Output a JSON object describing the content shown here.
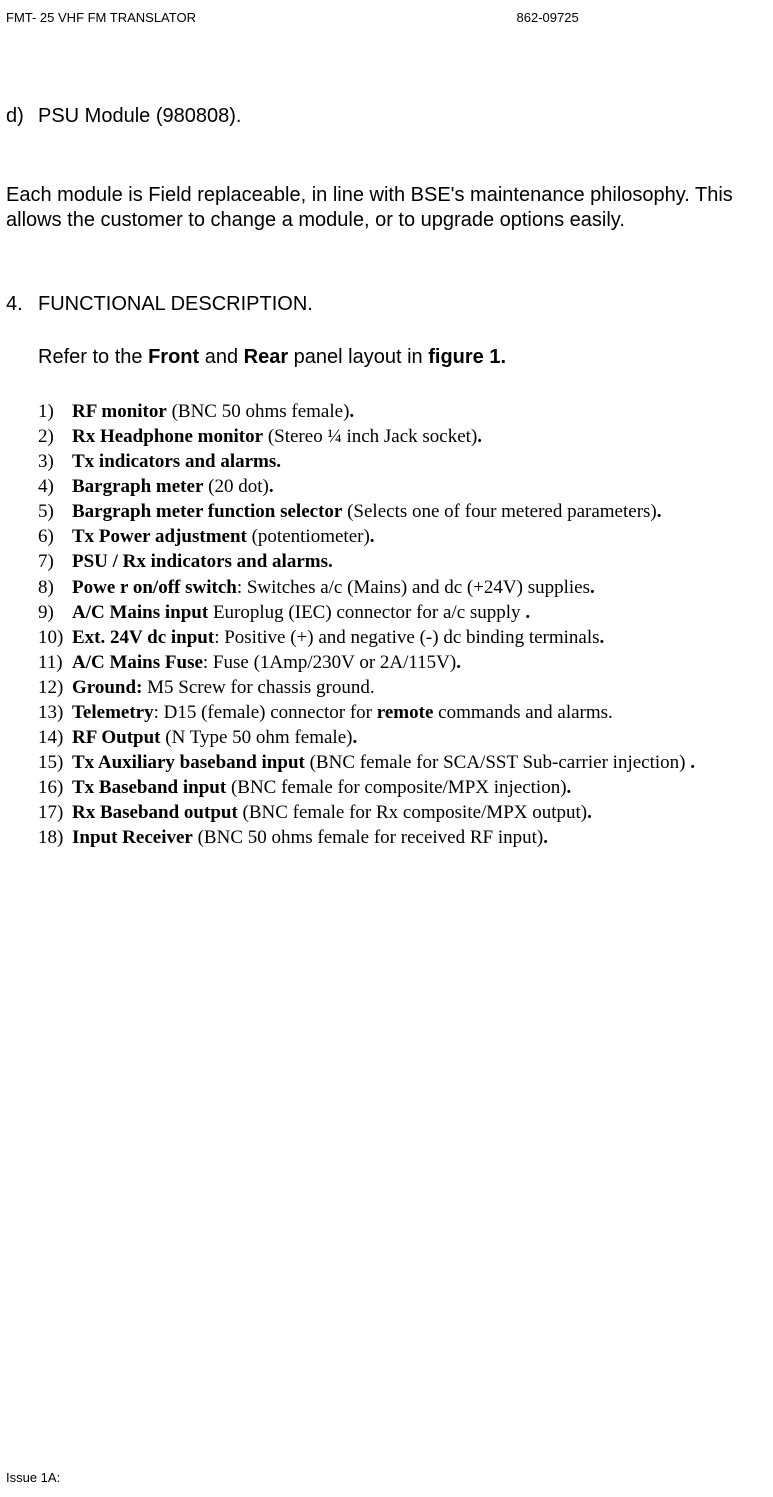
{
  "header": {
    "left": "FMT- 25 VHF FM TRANSLATOR",
    "right": "862-09725"
  },
  "item_d": {
    "marker": "d)",
    "text": "PSU Module (980808)."
  },
  "para": "Each module is Field replaceable, in line with BSE's maintenance philosophy. This allows the customer to change a module, or to upgrade options easily.",
  "sec4": {
    "num": "4.",
    "title": "FUNCTIONAL DESCRIPTION."
  },
  "refer": {
    "pre": "Refer to the ",
    "b1": "Front",
    "mid1": " and ",
    "b2": "Rear",
    "mid2": " panel layout in ",
    "b3": "figure 1."
  },
  "list": [
    {
      "n": "1)",
      "bold": "RF monitor",
      "rest": " (BNC 50 ohms female)",
      "tail": "."
    },
    {
      "n": "2)",
      "bold": "Rx Headphone monitor",
      "rest": " (Stereo ¼ inch Jack socket)",
      "tail": "."
    },
    {
      "n": "3)",
      "bold": "Tx indicators and alarms.",
      "rest": "",
      "tail": ""
    },
    {
      "n": "4)",
      "bold": "Bargraph meter",
      "rest": " (20 dot)",
      "tail": "."
    },
    {
      "n": "5)",
      "bold": "Bargraph meter function selector",
      "rest": " (Selects one of four metered parameters)",
      "tail": "."
    },
    {
      "n": "6)",
      "bold": "Tx Power adjustment",
      "rest": " (potentiometer)",
      "tail": "."
    },
    {
      "n": "7)",
      "bold": "PSU / Rx indicators and alarms.",
      "rest": "",
      "tail": ""
    },
    {
      "n": "8)",
      "bold": "Powe r on/off switch",
      "rest": ": Switches a/c (Mains) and dc (+24V) supplies",
      "tail": "."
    },
    {
      "n": "9)",
      "bold": "A/C Mains input",
      "rest": " Europlug (IEC) connector for a/c supply ",
      "tail": "."
    },
    {
      "n": "10)",
      "bold": "Ext. 24V dc input",
      "rest": ": Positive (+) and negative (-) dc binding terminals",
      "tail": "."
    },
    {
      "n": "11)",
      "bold": "A/C Mains Fuse",
      "rest": ": Fuse (1Amp/230V or 2A/115V)",
      "tail": "."
    },
    {
      "n": "12)",
      "bold": "Ground:",
      "rest": " M5 Screw for chassis ground.",
      "tail": ""
    },
    {
      "n": "13)",
      "bold": "Telemetry",
      "rest": ": D15 (female) connector for ",
      "bold2": "remote",
      "rest2": " commands and alarms.",
      "tail": ""
    },
    {
      "n": "14)",
      "bold": "RF Output",
      "rest": " (N Type 50 ohm female)",
      "tail": "."
    },
    {
      "n": "15)",
      "bold": "Tx Auxiliary baseband input",
      "rest": " (BNC female for SCA/SST Sub-carrier injection) ",
      "tail": "."
    },
    {
      "n": "16)",
      "bold": "Tx Baseband input",
      "rest": " (BNC female for composite/MPX injection)",
      "tail": "."
    },
    {
      "n": "17)",
      "bold": "Rx Baseband output",
      "rest": " (BNC female for Rx composite/MPX output)",
      "tail": "."
    },
    {
      "n": "18)",
      "bold": "Input Receiver",
      "rest": " (BNC 50 ohms female for received RF input)",
      "tail": "."
    }
  ],
  "footer": "Issue 1A:"
}
